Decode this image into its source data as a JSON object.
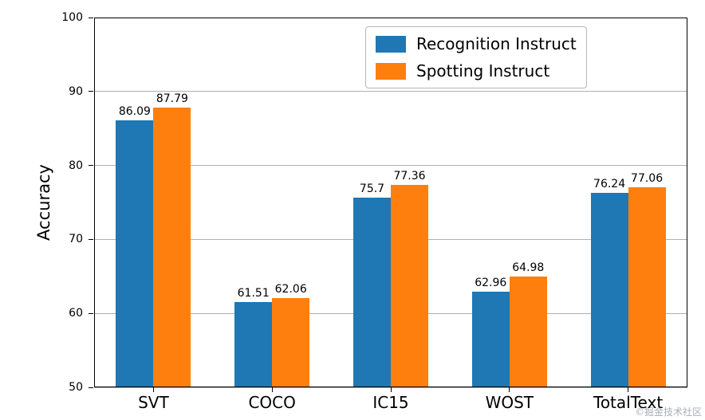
{
  "chart_data": {
    "type": "bar",
    "categories": [
      "SVT",
      "COCO",
      "IC15",
      "WOST",
      "TotalText"
    ],
    "series": [
      {
        "name": "Recognition Instruct",
        "color": "#1f77b4",
        "values": [
          86.09,
          61.51,
          75.7,
          62.96,
          76.24
        ]
      },
      {
        "name": "Spotting Instruct",
        "color": "#ff7f0e",
        "values": [
          87.79,
          62.06,
          77.36,
          64.98,
          77.06
        ]
      }
    ],
    "title": "",
    "xlabel": "",
    "ylabel": "Accuracy",
    "ylim": [
      50,
      100
    ],
    "yticks": [
      50,
      60,
      70,
      80,
      90,
      100
    ],
    "grid": true,
    "legend_position": "upper right"
  },
  "watermark": "©掘金技术社区"
}
